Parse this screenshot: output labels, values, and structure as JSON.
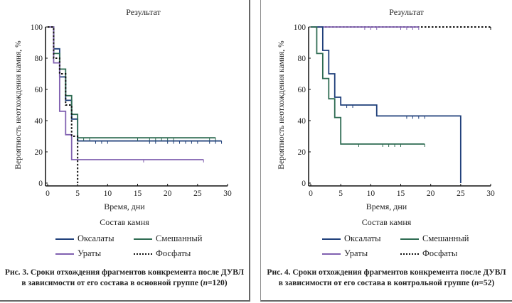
{
  "colors": {
    "oxalates": "#1f3f7a",
    "mixed": "#2e6b52",
    "urates": "#8060b0",
    "phosphates": "#111111",
    "axis": "#111111"
  },
  "legend": {
    "title": "Состав камня",
    "items": [
      {
        "key": "oxalates",
        "label": "Оксалаты",
        "style": "solid"
      },
      {
        "key": "mixed",
        "label": "Смешанный",
        "style": "solid"
      },
      {
        "key": "urates",
        "label": "Ураты",
        "style": "solid"
      },
      {
        "key": "phosphates",
        "label": "Фосфаты",
        "style": "dotted"
      }
    ]
  },
  "figures": [
    {
      "caption_line1": "Рис. 3. Сроки отхождения фрагментов конкремента после ДУВЛ",
      "caption_line2_prefix": "в зависимости от его состава в основной группе (",
      "caption_n_symbol": "n",
      "caption_line2_suffix": "=120)"
    },
    {
      "caption_line1": "Рис. 4. Сроки отхождения фрагментов конкремента после ДУВЛ",
      "caption_line2_prefix": "в зависимости от его состава в контрольной группе (",
      "caption_n_symbol": "n",
      "caption_line2_suffix": "=52)"
    }
  ],
  "chart_data": [
    {
      "type": "line",
      "subtype": "kaplan-meier step",
      "title": "Результат",
      "xlabel": "Время, дни",
      "ylabel": "Вероятность неотхождения камня, %",
      "xlim": [
        0,
        30
      ],
      "ylim": [
        0,
        100
      ],
      "xticks": [
        0,
        5,
        10,
        15,
        20,
        25,
        30
      ],
      "yticks": [
        0,
        20,
        40,
        60,
        80,
        100
      ],
      "grid": false,
      "legend_position": "bottom",
      "series": [
        {
          "name": "Оксалаты",
          "key": "oxalates",
          "steps": [
            [
              0,
              100
            ],
            [
              1,
              86
            ],
            [
              2,
              68
            ],
            [
              3,
              53
            ],
            [
              4,
              41
            ],
            [
              5,
              27
            ]
          ],
          "end": 29,
          "censored": [
            8,
            9,
            10,
            17,
            18,
            20,
            21,
            22,
            23,
            24,
            25,
            27,
            28,
            29
          ]
        },
        {
          "name": "Смешанный",
          "key": "mixed",
          "steps": [
            [
              0,
              100
            ],
            [
              1,
              83
            ],
            [
              2,
              73
            ],
            [
              3,
              56
            ],
            [
              4,
              44
            ],
            [
              5,
              29
            ]
          ],
          "end": 28,
          "censored": [
            6,
            7,
            15,
            17,
            18,
            19,
            20,
            21,
            27,
            28
          ]
        },
        {
          "name": "Ураты",
          "key": "urates",
          "steps": [
            [
              0,
              100
            ],
            [
              1,
              77
            ],
            [
              2,
              46
            ],
            [
              3,
              31
            ],
            [
              4,
              15
            ]
          ],
          "end": 26,
          "censored": [
            16,
            26
          ]
        },
        {
          "name": "Фосфаты",
          "key": "phosphates",
          "steps": [
            [
              0,
              100
            ],
            [
              1,
              80
            ],
            [
              2,
              70
            ],
            [
              3,
              50
            ],
            [
              4,
              30
            ],
            [
              5,
              0
            ]
          ],
          "end": 5,
          "censored": []
        }
      ]
    },
    {
      "type": "line",
      "subtype": "kaplan-meier step",
      "title": "Результат",
      "xlabel": "Время, дни",
      "ylabel": "Вероятность неотхождения камня, %",
      "xlim": [
        0,
        30
      ],
      "ylim": [
        0,
        100
      ],
      "xticks": [
        0,
        5,
        10,
        15,
        20,
        25,
        30
      ],
      "yticks": [
        0,
        20,
        40,
        60,
        80,
        100
      ],
      "grid": false,
      "legend_position": "bottom",
      "series": [
        {
          "name": "Фосфаты",
          "key": "phosphates",
          "steps": [
            [
              0,
              100
            ]
          ],
          "end": 30,
          "censored": [
            30
          ]
        },
        {
          "name": "Ураты",
          "key": "urates",
          "steps": [
            [
              0,
              100
            ]
          ],
          "end": 18,
          "censored": [
            9,
            10,
            11,
            15,
            16,
            17,
            18
          ]
        },
        {
          "name": "Оксалаты",
          "key": "oxalates",
          "steps": [
            [
              0,
              100
            ],
            [
              2,
              85
            ],
            [
              3,
              70
            ],
            [
              4,
              55
            ],
            [
              5,
              50
            ],
            [
              11,
              43
            ],
            [
              25,
              0
            ]
          ],
          "end": 25,
          "censored": [
            6,
            7,
            16,
            17,
            18,
            19
          ]
        },
        {
          "name": "Смешанный",
          "key": "mixed",
          "steps": [
            [
              0,
              100
            ],
            [
              1,
              83
            ],
            [
              2,
              67
            ],
            [
              3,
              54
            ],
            [
              4,
              42
            ],
            [
              5,
              25
            ]
          ],
          "end": 19,
          "censored": [
            8,
            12,
            13,
            14,
            15,
            19
          ]
        }
      ]
    }
  ]
}
